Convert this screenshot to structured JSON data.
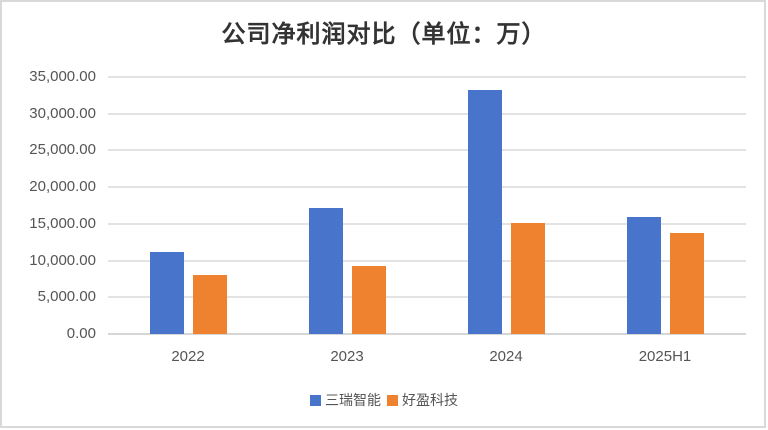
{
  "chart_data": {
    "type": "bar",
    "title": "公司净利润对比（单位：万）",
    "xlabel": "",
    "ylabel": "",
    "categories": [
      "2022",
      "2023",
      "2024",
      "2025H1"
    ],
    "series": [
      {
        "name": "三瑞智能",
        "color": "#4874CB",
        "values": [
          11170,
          17160,
          33230,
          15930
        ]
      },
      {
        "name": "好盈科技",
        "color": "#EE822F",
        "values": [
          8030,
          9260,
          15120,
          13750
        ]
      }
    ],
    "ylim": [
      0,
      35000
    ],
    "yticks": [
      "0.00",
      "5,000.00",
      "10,000.00",
      "15,000.00",
      "20,000.00",
      "25,000.00",
      "30,000.00",
      "35,000.00"
    ],
    "grid": true,
    "legend_position": "bottom"
  },
  "title": "公司净利润对比（单位：万）"
}
